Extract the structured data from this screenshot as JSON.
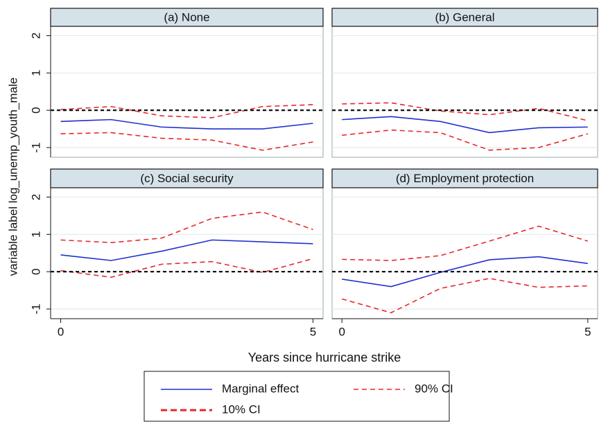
{
  "y_label": "variable label log_unemp_youth_male",
  "x_label": "Years since hurricane strike",
  "legend": [
    {
      "name": "Marginal effect",
      "color": "#1f2fd0",
      "dash": "none",
      "width": 1.5
    },
    {
      "name": "90% CI",
      "color": "#e8262a",
      "dash": "7 5",
      "width": 1.5
    },
    {
      "name": "10% CI",
      "color": "#e8262a",
      "dash": "9 5",
      "width": 3
    }
  ],
  "chart_data": [
    {
      "type": "line",
      "title": "(a) None",
      "x": [
        0,
        1,
        2,
        3,
        4,
        5
      ],
      "xlim": [
        -0.2,
        5.2
      ],
      "ylim": [
        -1.26,
        2.25
      ],
      "yticks": [
        2,
        1,
        0,
        -1
      ],
      "grid": true,
      "refline": 0,
      "series": [
        {
          "color": "#1f2fd0",
          "dash": "none",
          "values": [
            -0.3,
            -0.25,
            -0.45,
            -0.5,
            -0.5,
            -0.35
          ]
        },
        {
          "color": "#e8262a",
          "dash": "7 5",
          "values": [
            0.02,
            0.1,
            -0.15,
            -0.2,
            0.1,
            0.15
          ]
        },
        {
          "color": "#e8262a",
          "dash": "7 5",
          "values": [
            -0.63,
            -0.6,
            -0.75,
            -0.8,
            -1.07,
            -0.85
          ]
        }
      ]
    },
    {
      "type": "line",
      "title": "(b) General",
      "x": [
        0,
        1,
        2,
        3,
        4,
        5
      ],
      "xlim": [
        -0.2,
        5.2
      ],
      "ylim": [
        -1.26,
        2.25
      ],
      "yticks": [
        2,
        1,
        0,
        -1
      ],
      "grid": true,
      "refline": 0,
      "series": [
        {
          "color": "#1f2fd0",
          "dash": "none",
          "values": [
            -0.25,
            -0.17,
            -0.3,
            -0.6,
            -0.47,
            -0.45
          ]
        },
        {
          "color": "#e8262a",
          "dash": "7 5",
          "values": [
            0.17,
            0.2,
            -0.02,
            -0.12,
            0.05,
            -0.28
          ]
        },
        {
          "color": "#e8262a",
          "dash": "7 5",
          "values": [
            -0.67,
            -0.53,
            -0.6,
            -1.07,
            -1.0,
            -0.63
          ]
        }
      ]
    },
    {
      "type": "line",
      "title": "(c) Social security",
      "x": [
        0,
        1,
        2,
        3,
        4,
        5
      ],
      "xlim": [
        -0.2,
        5.2
      ],
      "xticks": [
        0,
        5
      ],
      "ylim": [
        -1.26,
        2.25
      ],
      "yticks": [
        2,
        1,
        0,
        -1
      ],
      "grid": true,
      "refline": 0,
      "series": [
        {
          "color": "#1f2fd0",
          "dash": "none",
          "values": [
            0.45,
            0.3,
            0.55,
            0.85,
            0.8,
            0.75
          ]
        },
        {
          "color": "#e8262a",
          "dash": "7 5",
          "values": [
            0.85,
            0.78,
            0.9,
            1.43,
            1.6,
            1.13
          ]
        },
        {
          "color": "#e8262a",
          "dash": "7 5",
          "values": [
            0.03,
            -0.15,
            0.2,
            0.27,
            -0.02,
            0.35
          ]
        }
      ]
    },
    {
      "type": "line",
      "title": "(d) Employment protection",
      "x": [
        0,
        1,
        2,
        3,
        4,
        5
      ],
      "xlim": [
        -0.2,
        5.2
      ],
      "xticks": [
        0,
        5
      ],
      "ylim": [
        -1.26,
        2.25
      ],
      "yticks": [
        2,
        1,
        0,
        -1
      ],
      "grid": true,
      "refline": 0,
      "series": [
        {
          "color": "#1f2fd0",
          "dash": "none",
          "values": [
            -0.2,
            -0.4,
            -0.02,
            0.32,
            0.4,
            0.22
          ]
        },
        {
          "color": "#e8262a",
          "dash": "7 5",
          "values": [
            0.33,
            0.3,
            0.43,
            0.82,
            1.22,
            0.82
          ]
        },
        {
          "color": "#e8262a",
          "dash": "7 5",
          "values": [
            -0.73,
            -1.1,
            -0.45,
            -0.18,
            -0.42,
            -0.38
          ]
        }
      ]
    }
  ]
}
